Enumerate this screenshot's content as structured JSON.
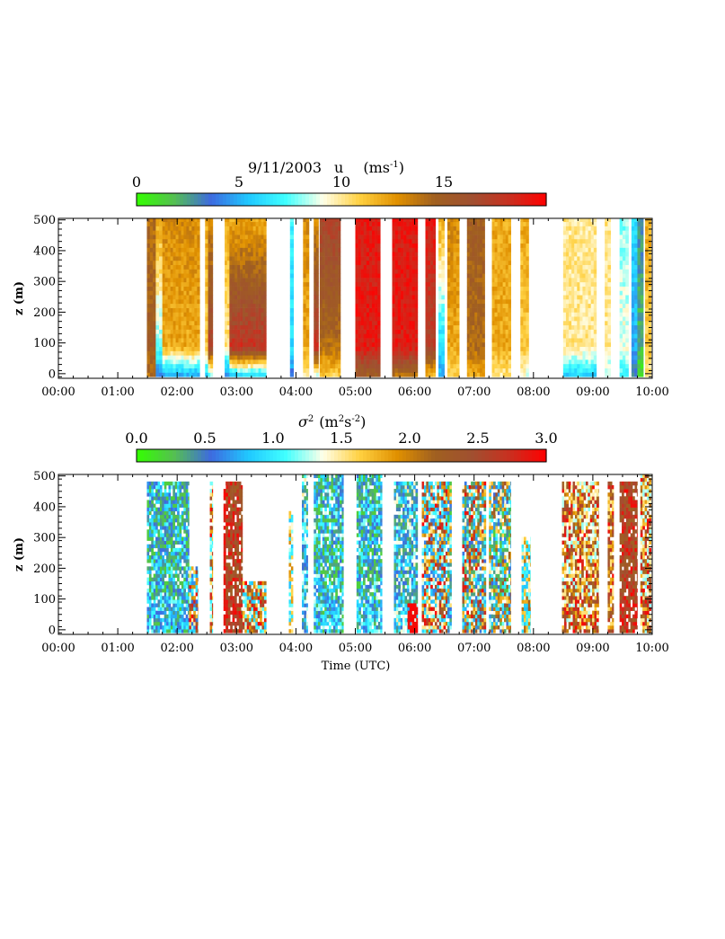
{
  "chart_data": [
    {
      "type": "heatmap",
      "title_parts": {
        "date": "9/11/2003",
        "var": "u",
        "unit_open": "(ms",
        "unit_exp": "-1",
        "unit_close": ")"
      },
      "xlabel": "",
      "ylabel": "z (m)",
      "x_tick_labels": [
        "00:00",
        "01:00",
        "02:00",
        "03:00",
        "04:00",
        "05:00",
        "06:00",
        "07:00",
        "08:00",
        "09:00",
        "10:00"
      ],
      "x_range_hours": [
        0,
        10
      ],
      "y_tick_labels": [
        "0",
        "100",
        "200",
        "300",
        "400",
        "500"
      ],
      "y_range": [
        -15,
        505
      ],
      "colorbar": {
        "ticks": [
          "0",
          "5",
          "10",
          "15"
        ],
        "tick_values": [
          0,
          5,
          10,
          15
        ],
        "range": [
          0,
          20
        ]
      },
      "colormap": [
        "#33ff00",
        "#55c050",
        "#3d6ae0",
        "#20c8ff",
        "#40ffff",
        "#ffffe8",
        "#ffd040",
        "#e09000",
        "#a06020",
        "#a05030",
        "#c83020",
        "#ff0000"
      ],
      "profiles": [
        {
          "t0": 1.49,
          "t1": 1.64,
          "top": 400,
          "bot": 14,
          "mid": 15,
          "hi": 14
        },
        {
          "t0": 1.64,
          "t1": 1.75,
          "top": 400,
          "bot": 4,
          "mid": 8,
          "hi": 12
        },
        {
          "t0": 1.75,
          "t1": 2.38,
          "top": 400,
          "bot": 5,
          "mid": 12,
          "hi": 13
        },
        {
          "t0": 2.47,
          "t1": 2.52,
          "top": 400,
          "bot": 6,
          "mid": 11,
          "hi": 12
        },
        {
          "t0": 2.52,
          "t1": 2.6,
          "top": 400,
          "bot": 8,
          "mid": 17,
          "hi": 13
        },
        {
          "t0": 2.8,
          "t1": 2.88,
          "top": 400,
          "bot": 4,
          "mid": 10,
          "hi": 12
        },
        {
          "t0": 2.88,
          "t1": 3.5,
          "top": 400,
          "bot": 6,
          "mid": 18,
          "hi": 12
        },
        {
          "t0": 3.9,
          "t1": 3.96,
          "top": 400,
          "bot": 4,
          "mid": 6,
          "hi": 7
        },
        {
          "t0": 4.12,
          "t1": 4.22,
          "top": 400,
          "bot": 10,
          "mid": 12,
          "hi": 13
        },
        {
          "t0": 4.3,
          "t1": 4.38,
          "top": 400,
          "bot": 9,
          "mid": 18,
          "hi": 13
        },
        {
          "t0": 4.4,
          "t1": 4.75,
          "top": 400,
          "bot": 11,
          "mid": 14,
          "hi": 17
        },
        {
          "t0": 5.0,
          "t1": 5.42,
          "top": 400,
          "bot": 15,
          "mid": 19,
          "hi": 19
        },
        {
          "t0": 5.62,
          "t1": 6.05,
          "top": 400,
          "bot": 14,
          "mid": 19,
          "hi": 19
        },
        {
          "t0": 6.18,
          "t1": 6.35,
          "top": 400,
          "bot": 12,
          "mid": 17,
          "hi": 19
        },
        {
          "t0": 6.4,
          "t1": 6.5,
          "top": 400,
          "bot": 5,
          "mid": 6,
          "hi": 12
        },
        {
          "t0": 6.55,
          "t1": 6.75,
          "top": 400,
          "bot": 11,
          "mid": 12,
          "hi": 13
        },
        {
          "t0": 6.88,
          "t1": 7.18,
          "top": 400,
          "bot": 12,
          "mid": 14,
          "hi": 15
        },
        {
          "t0": 7.3,
          "t1": 7.62,
          "top": 400,
          "bot": 10,
          "mid": 12,
          "hi": 12
        },
        {
          "t0": 7.78,
          "t1": 7.92,
          "top": 400,
          "bot": 9,
          "mid": 11,
          "hi": 12
        },
        {
          "t0": 8.5,
          "t1": 9.06,
          "top": 400,
          "bot": 6,
          "mid": 10,
          "hi": 10
        },
        {
          "t0": 9.2,
          "t1": 9.3,
          "top": 400,
          "bot": 8,
          "mid": 10,
          "hi": 10
        },
        {
          "t0": 9.45,
          "t1": 9.6,
          "top": 400,
          "bot": 7,
          "mid": 9,
          "hi": 8
        },
        {
          "t0": 9.65,
          "t1": 9.75,
          "top": 400,
          "bot": 3,
          "mid": 5,
          "hi": 6
        },
        {
          "t0": 9.75,
          "t1": 9.85,
          "top": 400,
          "bot": 1,
          "mid": 2,
          "hi": 3
        },
        {
          "t0": 9.88,
          "t1": 9.98,
          "top": 400,
          "bot": 10,
          "mid": 11,
          "hi": 12
        }
      ]
    },
    {
      "type": "heatmap",
      "title_parts": {
        "sym": "σ",
        "sym_exp": "2",
        "unit_open": "(m",
        "unit_exp1": "2",
        "unit_mid": "s",
        "unit_exp2": "-2",
        "unit_close": ")"
      },
      "xlabel": "Time (UTC)",
      "ylabel": "z (m)",
      "x_tick_labels": [
        "00:00",
        "01:00",
        "02:00",
        "03:00",
        "04:00",
        "05:00",
        "06:00",
        "07:00",
        "08:00",
        "09:00",
        "10:00"
      ],
      "x_range_hours": [
        0,
        10
      ],
      "y_tick_labels": [
        "0",
        "100",
        "200",
        "300",
        "400",
        "500"
      ],
      "y_range": [
        -15,
        505
      ],
      "colorbar": {
        "ticks": [
          "0.0",
          "0.5",
          "1.0",
          "1.5",
          "2.0",
          "2.5",
          "3.0"
        ],
        "tick_values": [
          0,
          0.5,
          1.0,
          1.5,
          2.0,
          2.5,
          3.0
        ],
        "range": [
          0,
          3.0
        ]
      },
      "colormap": [
        "#33ff00",
        "#55c050",
        "#3d6ae0",
        "#20c8ff",
        "#40ffff",
        "#ffffe8",
        "#ffd040",
        "#e09000",
        "#a06020",
        "#a05030",
        "#c83020",
        "#ff0000"
      ],
      "profiles": [
        {
          "t0": 1.49,
          "t1": 2.2,
          "lo": 0.2,
          "hi": 1.2,
          "top": 480
        },
        {
          "t0": 2.2,
          "t1": 2.35,
          "lo": 0.5,
          "hi": 3.0,
          "top": 200
        },
        {
          "t0": 2.55,
          "t1": 2.6,
          "lo": 1.0,
          "hi": 3.0,
          "top": 480
        },
        {
          "t0": 2.78,
          "t1": 2.82,
          "lo": 2.8,
          "hi": 3.0,
          "top": 480
        },
        {
          "t0": 2.82,
          "t1": 3.1,
          "lo": 2.2,
          "hi": 3.0,
          "top": 480
        },
        {
          "t0": 3.1,
          "t1": 3.5,
          "lo": 0.8,
          "hi": 3.0,
          "top": 150
        },
        {
          "t0": 3.88,
          "t1": 3.95,
          "lo": 0.8,
          "hi": 2.0,
          "top": 380
        },
        {
          "t0": 4.1,
          "t1": 4.2,
          "lo": 0.3,
          "hi": 1.5,
          "top": 500
        },
        {
          "t0": 4.3,
          "t1": 4.8,
          "lo": 0.2,
          "hi": 1.3,
          "top": 500
        },
        {
          "t0": 5.02,
          "t1": 5.45,
          "lo": 0.2,
          "hi": 1.3,
          "top": 500
        },
        {
          "t0": 5.65,
          "t1": 6.05,
          "lo": 0.3,
          "hi": 1.5,
          "top": 480
        },
        {
          "t0": 5.88,
          "t1": 6.05,
          "lo": 2.9,
          "hi": 3.0,
          "top": 80
        },
        {
          "t0": 6.12,
          "t1": 6.55,
          "lo": 0.6,
          "hi": 3.0,
          "top": 480
        },
        {
          "t0": 6.55,
          "t1": 6.62,
          "lo": 0.2,
          "hi": 2.0,
          "top": 480
        },
        {
          "t0": 6.8,
          "t1": 7.2,
          "lo": 0.3,
          "hi": 3.0,
          "top": 480
        },
        {
          "t0": 7.25,
          "t1": 7.62,
          "lo": 0.2,
          "hi": 2.5,
          "top": 480
        },
        {
          "t0": 7.8,
          "t1": 7.95,
          "lo": 0.8,
          "hi": 2.2,
          "top": 300
        },
        {
          "t0": 8.48,
          "t1": 9.1,
          "lo": 1.2,
          "hi": 3.0,
          "top": 480
        },
        {
          "t0": 9.25,
          "t1": 9.35,
          "lo": 1.5,
          "hi": 3.0,
          "top": 480
        },
        {
          "t0": 9.45,
          "t1": 9.75,
          "lo": 2.2,
          "hi": 3.0,
          "top": 480
        },
        {
          "t0": 9.8,
          "t1": 9.98,
          "lo": 1.2,
          "hi": 3.0,
          "top": 500
        }
      ]
    }
  ]
}
